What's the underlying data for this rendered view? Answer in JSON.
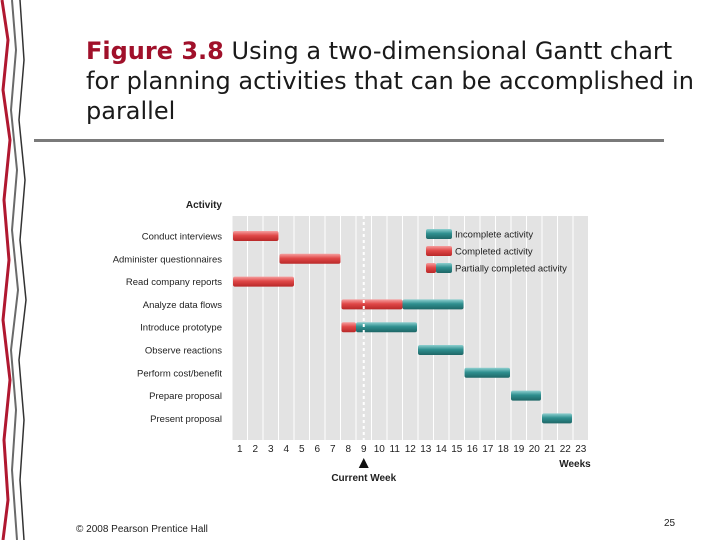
{
  "slide": {
    "title_bold": "Figure 3.8",
    "title_rest": "Using a two-dimensional Gantt chart for planning activities that can be accomplished in parallel",
    "footer": "© 2008 Pearson Prentice Hall",
    "page_number": "25"
  },
  "colors": {
    "completed": "#e04848",
    "incomplete": "#2f8f8f",
    "grid_bg": "#e3e3e3",
    "title_accent": "#a0102a"
  },
  "chart_data": {
    "type": "gantt",
    "title": "",
    "ylabel": "Activity",
    "xlabel": "Weeks",
    "x_ticks": [
      "1",
      "2",
      "3",
      "4",
      "5",
      "6",
      "7",
      "8",
      "9",
      "10",
      "11",
      "12",
      "13",
      "14",
      "15",
      "16",
      "17",
      "18",
      "19",
      "20",
      "21",
      "22",
      "23"
    ],
    "xlim": [
      0,
      23
    ],
    "current_week": {
      "label": "Current Week",
      "week": 9
    },
    "legend": [
      {
        "label": "Incomplete activity",
        "status": "incomplete"
      },
      {
        "label": "Completed activity",
        "status": "completed"
      },
      {
        "label": "Partially completed activity",
        "status": "partial"
      }
    ],
    "activities": [
      {
        "name": "Conduct interviews",
        "start": 0,
        "end": 3,
        "completed_until": 3
      },
      {
        "name": "Administer questionnaires",
        "start": 3,
        "end": 7,
        "completed_until": 7
      },
      {
        "name": "Read company reports",
        "start": 0,
        "end": 4,
        "completed_until": 4
      },
      {
        "name": "Analyze data flows",
        "start": 7,
        "end": 15,
        "completed_until": 11
      },
      {
        "name": "Introduce prototype",
        "start": 7,
        "end": 12,
        "completed_until": 8
      },
      {
        "name": "Observe reactions",
        "start": 12,
        "end": 15,
        "completed_until": 12
      },
      {
        "name": "Perform cost/benefit",
        "start": 15,
        "end": 18,
        "completed_until": 15
      },
      {
        "name": "Prepare proposal",
        "start": 18,
        "end": 20,
        "completed_until": 18
      },
      {
        "name": "Present proposal",
        "start": 20,
        "end": 22,
        "completed_until": 20
      }
    ]
  }
}
